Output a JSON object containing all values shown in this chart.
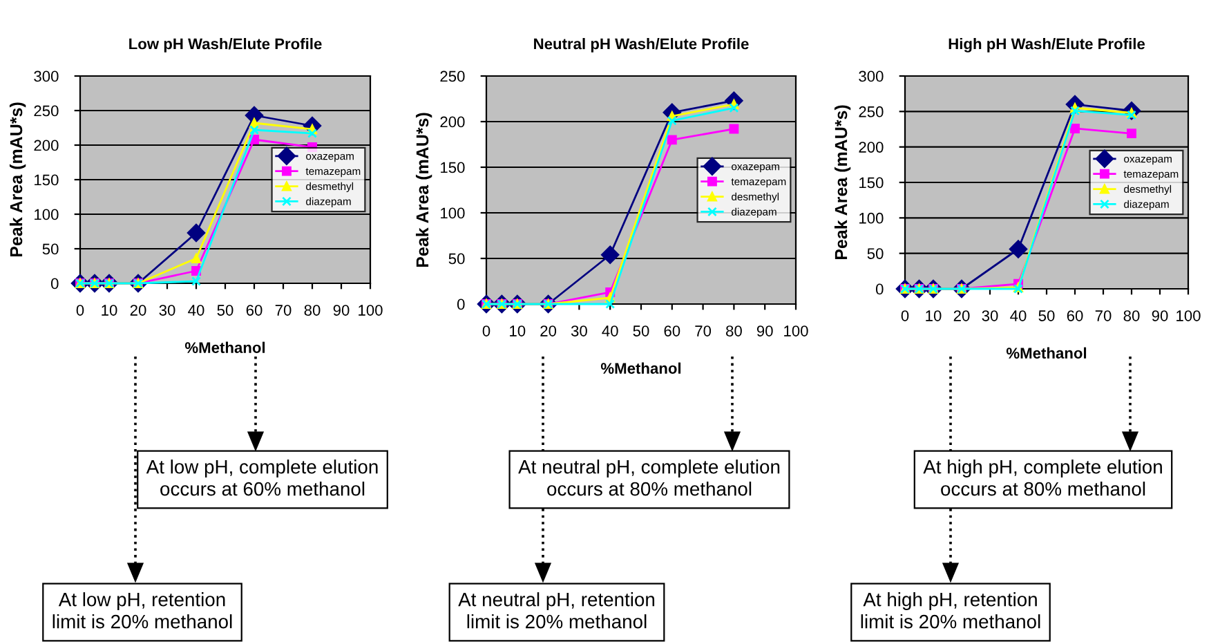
{
  "chart_data": [
    {
      "type": "line",
      "title": "Low pH Wash/Elute Profile",
      "xlabel": "%Methanol",
      "ylabel": "Peak Area (mAU*s)",
      "x": [
        0,
        5,
        10,
        20,
        40,
        60,
        80
      ],
      "xlim": [
        0,
        100
      ],
      "xticks": [
        0,
        10,
        20,
        30,
        40,
        50,
        60,
        70,
        80,
        90,
        100
      ],
      "ylim": [
        0,
        300
      ],
      "yticks": [
        0,
        50,
        100,
        150,
        200,
        250,
        300
      ],
      "grid": "y",
      "legend": "right",
      "series": [
        {
          "name": "oxazepam",
          "color": "#000080",
          "marker": "diamond",
          "values": [
            0,
            0,
            0,
            0,
            73,
            243,
            228
          ]
        },
        {
          "name": "temazepam",
          "color": "#ff00ff",
          "marker": "square",
          "values": [
            0,
            0,
            0,
            0,
            18,
            208,
            197
          ]
        },
        {
          "name": "desmethyl",
          "color": "#ffff00",
          "marker": "triangle",
          "values": [
            0,
            0,
            0,
            0,
            36,
            232,
            223
          ]
        },
        {
          "name": "diazepam",
          "color": "#00ffff",
          "marker": "cross",
          "values": [
            0,
            0,
            0,
            0,
            3,
            222,
            217
          ]
        }
      ],
      "annotations": [
        "At low pH, complete elution\noccurs at 60% methanol",
        "At low pH, retention\nlimit is 20% methanol"
      ]
    },
    {
      "type": "line",
      "title": "Neutral pH Wash/Elute Profile",
      "xlabel": "%Methanol",
      "ylabel": "Peak Area (mAU*s)",
      "x": [
        0,
        5,
        10,
        20,
        40,
        60,
        80
      ],
      "xlim": [
        0,
        100
      ],
      "xticks": [
        0,
        10,
        20,
        30,
        40,
        50,
        60,
        70,
        80,
        90,
        100
      ],
      "ylim": [
        0,
        250
      ],
      "yticks": [
        0,
        50,
        100,
        150,
        200,
        250
      ],
      "grid": "y",
      "legend": "right",
      "series": [
        {
          "name": "oxazepam",
          "color": "#000080",
          "marker": "diamond",
          "values": [
            0,
            0,
            0,
            0,
            54,
            210,
            223
          ]
        },
        {
          "name": "temazepam",
          "color": "#ff00ff",
          "marker": "square",
          "values": [
            0,
            0,
            0,
            0,
            13,
            180,
            192
          ]
        },
        {
          "name": "desmethyl",
          "color": "#ffff00",
          "marker": "triangle",
          "values": [
            0,
            0,
            0,
            0,
            7,
            206,
            219
          ]
        },
        {
          "name": "diazepam",
          "color": "#00ffff",
          "marker": "cross",
          "values": [
            0,
            0,
            0,
            0,
            0,
            201,
            215
          ]
        }
      ],
      "annotations": [
        "At neutral pH, complete elution\noccurs at 80% methanol",
        "At neutral pH, retention\nlimit is 20% methanol"
      ]
    },
    {
      "type": "line",
      "title": "High pH Wash/Elute Profile",
      "xlabel": "%Methanol",
      "ylabel": "Peak Area (mAU*s)",
      "x": [
        0,
        5,
        10,
        20,
        40,
        60,
        80
      ],
      "xlim": [
        0,
        100
      ],
      "xticks": [
        0,
        10,
        20,
        30,
        40,
        50,
        60,
        70,
        80,
        90,
        100
      ],
      "ylim": [
        0,
        300
      ],
      "yticks": [
        0,
        50,
        100,
        150,
        200,
        250,
        300
      ],
      "grid": "y",
      "legend": "right",
      "series": [
        {
          "name": "oxazepam",
          "color": "#000080",
          "marker": "diamond",
          "values": [
            0,
            0,
            0,
            0,
            56,
            260,
            251
          ]
        },
        {
          "name": "temazepam",
          "color": "#ff00ff",
          "marker": "square",
          "values": [
            0,
            0,
            0,
            0,
            7,
            226,
            219
          ]
        },
        {
          "name": "desmethyl",
          "color": "#ffff00",
          "marker": "triangle",
          "values": [
            0,
            0,
            0,
            0,
            2,
            255,
            248
          ]
        },
        {
          "name": "diazepam",
          "color": "#00ffff",
          "marker": "cross",
          "values": [
            0,
            0,
            0,
            0,
            0,
            251,
            245
          ]
        }
      ],
      "annotations": [
        "At high pH, complete elution\noccurs at 80% methanol",
        "At high pH, retention\nlimit is 20% methanol"
      ]
    }
  ]
}
